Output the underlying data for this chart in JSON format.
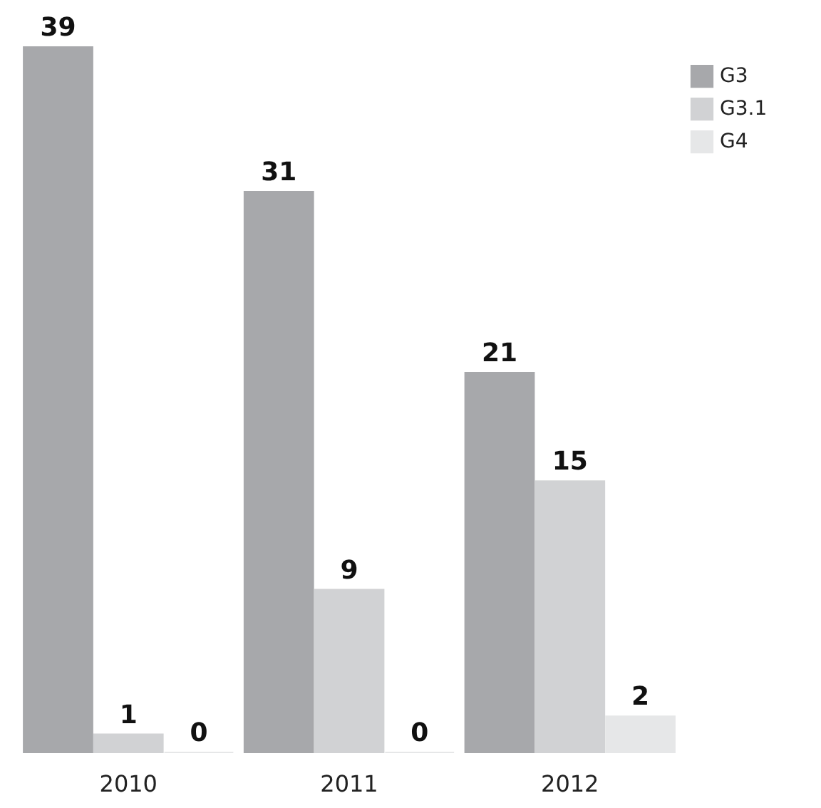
{
  "chart_data": {
    "type": "bar",
    "categories": [
      "2010",
      "2011",
      "2012"
    ],
    "series": [
      {
        "name": "G3",
        "color": "#a7a8ab",
        "values": [
          39,
          31,
          21
        ]
      },
      {
        "name": "G3.1",
        "color": "#d1d2d4",
        "values": [
          1,
          9,
          15
        ]
      },
      {
        "name": "G4",
        "color": "#e6e7e8",
        "values": [
          0,
          0,
          2
        ]
      }
    ],
    "data_labels": true,
    "legend": "top right",
    "grid": false
  }
}
